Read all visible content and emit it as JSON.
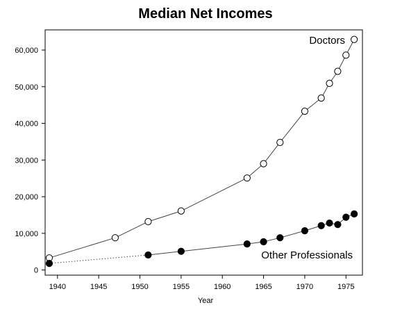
{
  "chart_data": {
    "type": "line",
    "title": "Median Net Incomes",
    "xlabel": "Year",
    "ylabel": "",
    "xlim": [
      1938.5,
      1977.0
    ],
    "ylim": [
      -1400,
      65500
    ],
    "x_ticks": [
      1940,
      1945,
      1950,
      1955,
      1960,
      1965,
      1970,
      1975
    ],
    "y_ticks": [
      0,
      10000,
      20000,
      30000,
      40000,
      50000,
      60000
    ],
    "x_tick_labels": [
      "1940",
      "1945",
      "1950",
      "1955",
      "1960",
      "1965",
      "1970",
      "1975"
    ],
    "y_tick_labels": [
      "0",
      "10,000",
      "20,000",
      "30,000",
      "40,000",
      "50,000",
      "60,000"
    ],
    "grid": false,
    "series": [
      {
        "name": "Doctors",
        "marker": "open-circle",
        "x": [
          1939,
          1947,
          1951,
          1955,
          1963,
          1965,
          1967,
          1970,
          1972,
          1973,
          1974,
          1975,
          1976
        ],
        "y": [
          3300,
          8800,
          13200,
          16100,
          25100,
          29000,
          34800,
          43300,
          46900,
          50900,
          54200,
          58600,
          62900
        ]
      },
      {
        "name": "Other Professionals",
        "marker": "filled-circle",
        "x": [
          1939,
          1951,
          1955,
          1963,
          1965,
          1967,
          1970,
          1972,
          1973,
          1974,
          1975,
          1976
        ],
        "y": [
          1800,
          4100,
          5100,
          7100,
          7700,
          8800,
          10700,
          12100,
          12800,
          12400,
          14400,
          15300
        ],
        "dotted_segment": [
          1939,
          1951
        ]
      }
    ],
    "colors": {
      "line": "#444444",
      "marker_fill_open": "#ffffff",
      "marker_fill_solid": "#000000"
    }
  }
}
